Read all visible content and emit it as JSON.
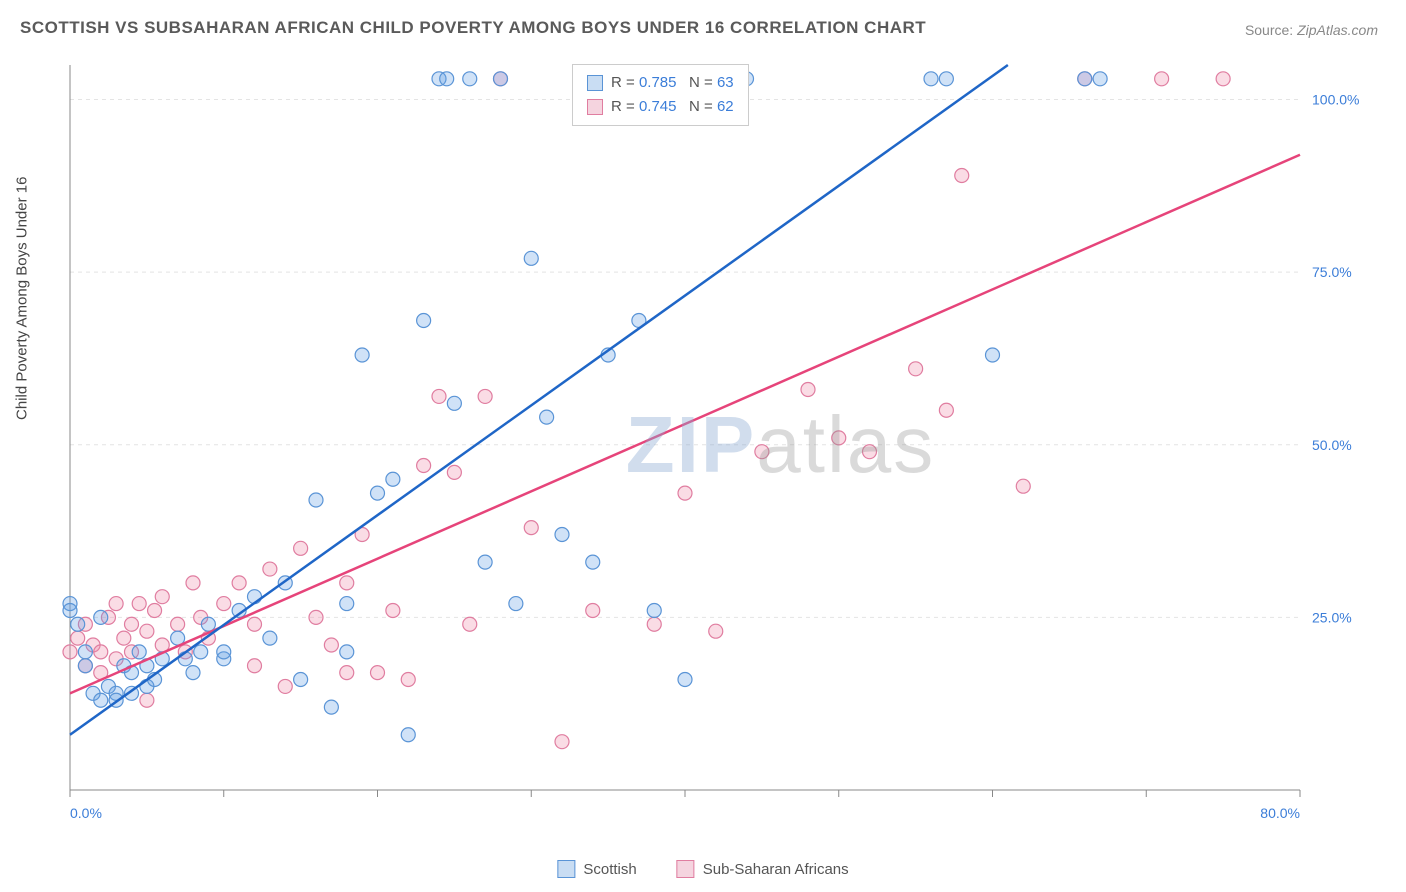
{
  "title": "SCOTTISH VS SUBSAHARAN AFRICAN CHILD POVERTY AMONG BOYS UNDER 16 CORRELATION CHART",
  "source_label": "Source:",
  "source_value": "ZipAtlas.com",
  "y_axis_label": "Child Poverty Among Boys Under 16",
  "watermark_zip": "ZIP",
  "watermark_atlas": "atlas",
  "chart": {
    "type": "scatter",
    "background_color": "#ffffff",
    "grid_color": "#e4e4e4",
    "axis_line_color": "#888888",
    "tick_color": "#888888",
    "xlim": [
      0,
      80
    ],
    "ylim": [
      0,
      105
    ],
    "x_tick_positions": [
      0,
      10,
      20,
      30,
      40,
      50,
      60,
      70,
      80
    ],
    "x_tick_labels": {
      "0": "0.0%",
      "80": "80.0%"
    },
    "y_tick_positions": [
      25,
      50,
      75,
      100
    ],
    "y_tick_labels": {
      "25": "25.0%",
      "50": "50.0%",
      "75": "75.0%",
      "100": "100.0%"
    },
    "tick_label_color": "#3b7dd8",
    "tick_label_fontsize": 14,
    "marker_radius": 7,
    "marker_stroke_width": 1.2,
    "regression_line_width": 2.5
  },
  "series_a": {
    "name": "Scottish",
    "fill_color": "rgba(100,160,230,0.30)",
    "stroke_color": "#5a94d6",
    "line_color": "#1f66c7",
    "swatch_fill": "#c9ddf3",
    "swatch_border": "#5a94d6",
    "r_value": "0.785",
    "n_value": "63",
    "regression": {
      "x1": 0,
      "y1": 8,
      "x2": 61,
      "y2": 105
    },
    "points": [
      [
        0,
        27
      ],
      [
        0,
        26
      ],
      [
        0.5,
        24
      ],
      [
        1,
        20
      ],
      [
        1,
        18
      ],
      [
        1.5,
        14
      ],
      [
        2,
        13
      ],
      [
        2,
        25
      ],
      [
        2.5,
        15
      ],
      [
        3,
        14
      ],
      [
        3,
        13
      ],
      [
        3.5,
        18
      ],
      [
        4,
        14
      ],
      [
        4,
        17
      ],
      [
        4.5,
        20
      ],
      [
        5,
        15
      ],
      [
        5,
        18
      ],
      [
        5.5,
        16
      ],
      [
        6,
        19
      ],
      [
        7,
        22
      ],
      [
        7.5,
        19
      ],
      [
        8,
        17
      ],
      [
        8.5,
        20
      ],
      [
        9,
        24
      ],
      [
        10,
        19
      ],
      [
        10,
        20
      ],
      [
        11,
        26
      ],
      [
        12,
        28
      ],
      [
        13,
        22
      ],
      [
        14,
        30
      ],
      [
        15,
        16
      ],
      [
        16,
        42
      ],
      [
        17,
        12
      ],
      [
        18,
        27
      ],
      [
        18,
        20
      ],
      [
        19,
        63
      ],
      [
        20,
        43
      ],
      [
        21,
        45
      ],
      [
        22,
        8
      ],
      [
        23,
        68
      ],
      [
        24,
        103
      ],
      [
        24.5,
        103
      ],
      [
        25,
        56
      ],
      [
        26,
        103
      ],
      [
        27,
        33
      ],
      [
        28,
        103
      ],
      [
        29,
        27
      ],
      [
        30,
        77
      ],
      [
        31,
        54
      ],
      [
        32,
        37
      ],
      [
        34,
        33
      ],
      [
        35,
        63
      ],
      [
        37,
        68
      ],
      [
        38,
        26
      ],
      [
        40,
        16
      ],
      [
        41,
        103
      ],
      [
        42,
        103
      ],
      [
        44,
        103
      ],
      [
        56,
        103
      ],
      [
        57,
        103
      ],
      [
        60,
        63
      ],
      [
        66,
        103
      ],
      [
        67,
        103
      ]
    ]
  },
  "series_b": {
    "name": "Sub-Saharan Africans",
    "fill_color": "rgba(240,140,170,0.30)",
    "stroke_color": "#e07da0",
    "line_color": "#e6447a",
    "swatch_fill": "#f5d4df",
    "swatch_border": "#e07da0",
    "r_value": "0.745",
    "n_value": "62",
    "regression": {
      "x1": 0,
      "y1": 14,
      "x2": 80,
      "y2": 92
    },
    "points": [
      [
        0,
        20
      ],
      [
        0.5,
        22
      ],
      [
        1,
        18
      ],
      [
        1,
        24
      ],
      [
        1.5,
        21
      ],
      [
        2,
        20
      ],
      [
        2,
        17
      ],
      [
        2.5,
        25
      ],
      [
        3,
        27
      ],
      [
        3,
        19
      ],
      [
        3.5,
        22
      ],
      [
        4,
        24
      ],
      [
        4,
        20
      ],
      [
        4.5,
        27
      ],
      [
        5,
        23
      ],
      [
        5,
        13
      ],
      [
        5.5,
        26
      ],
      [
        6,
        28
      ],
      [
        6,
        21
      ],
      [
        7,
        24
      ],
      [
        7.5,
        20
      ],
      [
        8,
        30
      ],
      [
        8.5,
        25
      ],
      [
        9,
        22
      ],
      [
        10,
        27
      ],
      [
        11,
        30
      ],
      [
        12,
        24
      ],
      [
        12,
        18
      ],
      [
        13,
        32
      ],
      [
        14,
        15
      ],
      [
        15,
        35
      ],
      [
        16,
        25
      ],
      [
        17,
        21
      ],
      [
        18,
        30
      ],
      [
        18,
        17
      ],
      [
        19,
        37
      ],
      [
        20,
        17
      ],
      [
        21,
        26
      ],
      [
        22,
        16
      ],
      [
        23,
        47
      ],
      [
        24,
        57
      ],
      [
        25,
        46
      ],
      [
        26,
        24
      ],
      [
        27,
        57
      ],
      [
        28,
        103
      ],
      [
        30,
        38
      ],
      [
        32,
        7
      ],
      [
        34,
        26
      ],
      [
        38,
        24
      ],
      [
        40,
        43
      ],
      [
        42,
        23
      ],
      [
        45,
        49
      ],
      [
        48,
        58
      ],
      [
        50,
        51
      ],
      [
        52,
        49
      ],
      [
        55,
        61
      ],
      [
        57,
        55
      ],
      [
        58,
        89
      ],
      [
        62,
        44
      ],
      [
        66,
        103
      ],
      [
        71,
        103
      ],
      [
        75,
        103
      ]
    ]
  },
  "stats_box": {
    "r_label": "R =",
    "n_label": "N ="
  },
  "legend": {
    "a_label": "Scottish",
    "b_label": "Sub-Saharan Africans"
  }
}
